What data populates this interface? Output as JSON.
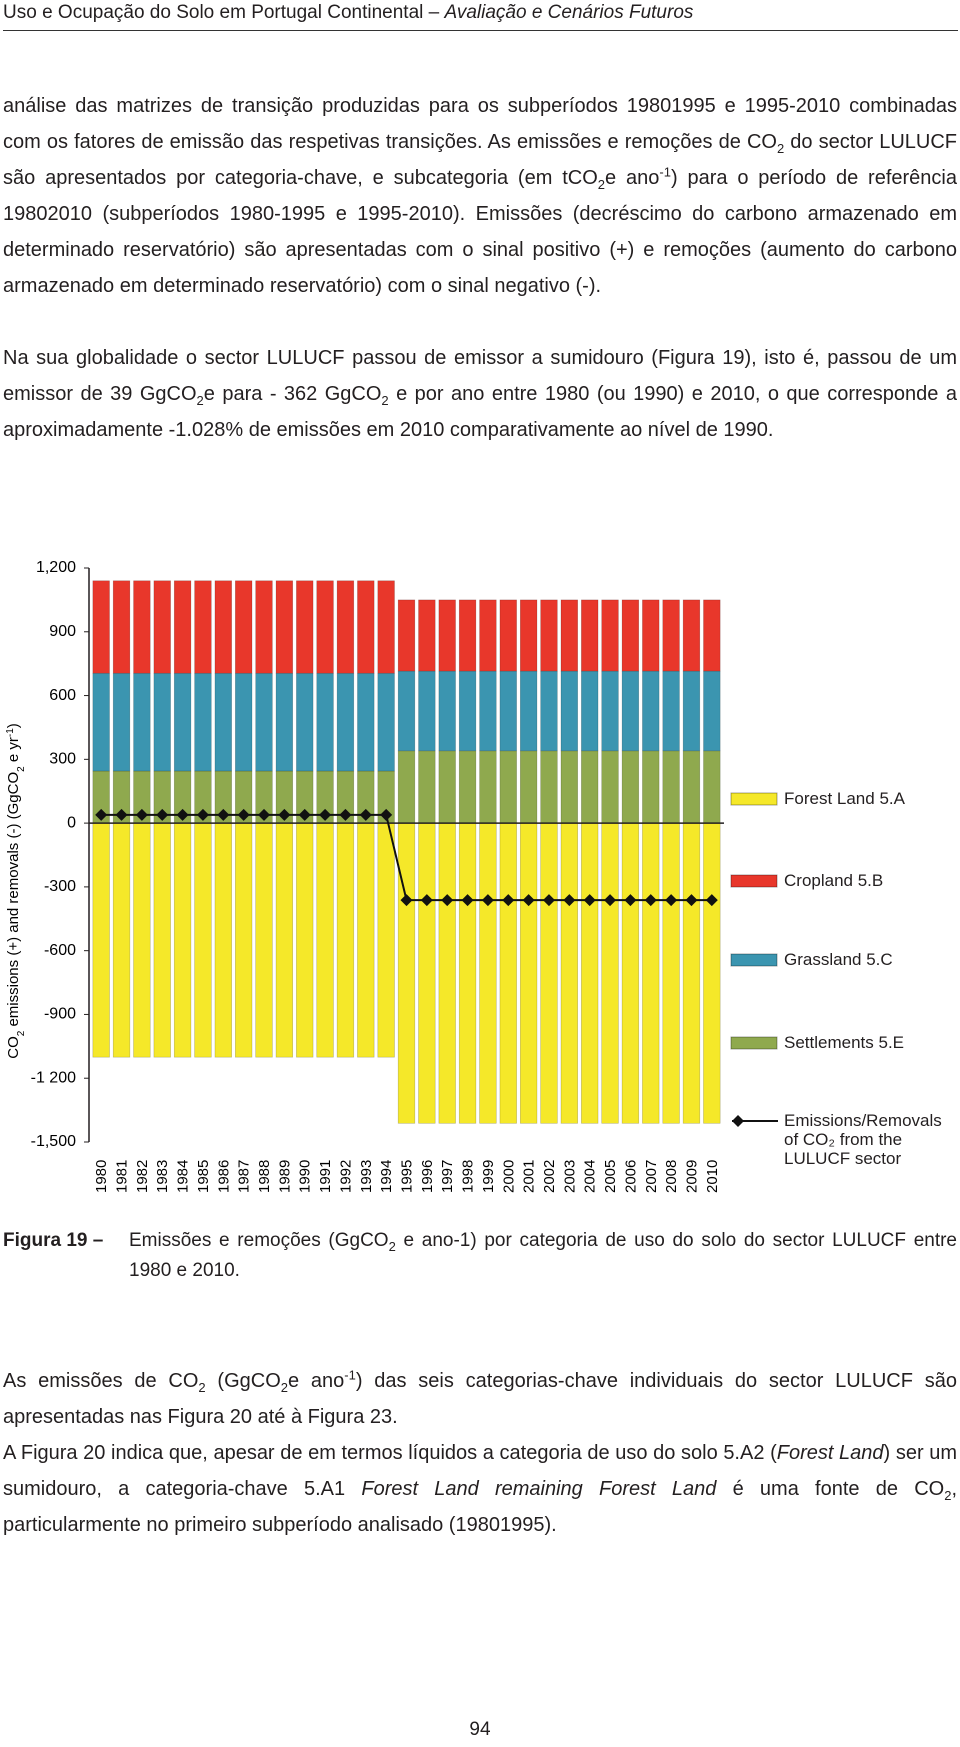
{
  "header": {
    "title": "Uso e Ocupação do Solo em Portugal Continental – ",
    "subtitle": "Avaliação e Cenários Futuros"
  },
  "paragraphs": [
    [
      "análise das matrizes de transição produzidas para os subperíodos 19801995 e 1995-2010 combinadas com os fatores de emissão das respetivas transições. As emissões e remoções de CO",
      "2",
      " do sector LULUCF são apresentados por categoria-chave, e subcategoria (em tCO",
      "2",
      "e ano",
      "-1",
      ") para o período de referência 19802010 (subperíodos 1980-1995 e 1995-2010). Emissões (decréscimo do carbono armazenado em determinado reservatório) são apresentadas com o sinal positivo (+) e remoções (aumento do carbono armazenado em determinado reservatório) com o sinal negativo (-)."
    ],
    [
      "Na sua globalidade o sector LULUCF passou de emissor a sumidouro (Figura 19), isto é, passou de um emissor de 39 GgCO",
      "2",
      "e para - 362 GgCO",
      "2",
      " e por ano entre 1980 (ou 1990) e 2010, o que corresponde a aproximadamente -1.028% de emissões em 2010 comparativamente ao nível de 1990."
    ]
  ],
  "chart_data": {
    "type": "bar",
    "stacked": true,
    "ylabel": [
      "CO",
      "2",
      " emissions (+) and removals (-) (GgCO",
      "2",
      " e yr",
      "-1",
      ")"
    ],
    "categories": [
      "1980",
      "1981",
      "1982",
      "1983",
      "1984",
      "1985",
      "1986",
      "1987",
      "1988",
      "1989",
      "1990",
      "1991",
      "1992",
      "1993",
      "1994",
      "1995",
      "1996",
      "1997",
      "1998",
      "1999",
      "2000",
      "2001",
      "2002",
      "2003",
      "2004",
      "2005",
      "2006",
      "2007",
      "2008",
      "2009",
      "2010"
    ],
    "ylim": [
      -1500,
      1200
    ],
    "yticks": [
      {
        "value": -1500,
        "label": "-1,500"
      },
      {
        "value": -1200,
        "label": "-1 200"
      },
      -900,
      -600,
      -300,
      0,
      300,
      600,
      900,
      {
        "value": 1200,
        "label": "1,200"
      }
    ],
    "series": [
      {
        "name": "Forest Land 5.A",
        "color": "#f5e829",
        "values": [
          -1101,
          -1101,
          -1101,
          -1101,
          -1101,
          -1101,
          -1101,
          -1101,
          -1101,
          -1101,
          -1101,
          -1101,
          -1101,
          -1101,
          -1101,
          -1412,
          -1412,
          -1412,
          -1412,
          -1412,
          -1412,
          -1412,
          -1412,
          -1412,
          -1412,
          -1412,
          -1412,
          -1412,
          -1412,
          -1412,
          -1412
        ]
      },
      {
        "name": "Cropland 5.B",
        "color": "#e8372b",
        "values": [
          435,
          435,
          435,
          435,
          435,
          435,
          435,
          435,
          435,
          435,
          435,
          435,
          435,
          435,
          435,
          335,
          335,
          335,
          335,
          335,
          335,
          335,
          335,
          335,
          335,
          335,
          335,
          335,
          335,
          335,
          335
        ]
      },
      {
        "name": "Grassland 5.C",
        "color": "#3b95b0",
        "values": [
          460,
          460,
          460,
          460,
          460,
          460,
          460,
          460,
          460,
          460,
          460,
          460,
          460,
          460,
          460,
          375,
          375,
          375,
          375,
          375,
          375,
          375,
          375,
          375,
          375,
          375,
          375,
          375,
          375,
          375,
          375
        ]
      },
      {
        "name": "Settlements 5.E",
        "color": "#8fa94e",
        "values": [
          245,
          245,
          245,
          245,
          245,
          245,
          245,
          245,
          245,
          245,
          245,
          245,
          245,
          245,
          245,
          340,
          340,
          340,
          340,
          340,
          340,
          340,
          340,
          340,
          340,
          340,
          340,
          340,
          340,
          340,
          340
        ]
      },
      {
        "name": "Emissions/Removals of CO₂ from the LULUCF sector",
        "type": "line",
        "color": "#111111",
        "values": [
          39,
          39,
          39,
          39,
          39,
          39,
          39,
          39,
          39,
          39,
          39,
          39,
          39,
          39,
          39,
          -362,
          -362,
          -362,
          -362,
          -362,
          -362,
          -362,
          -362,
          -362,
          -362,
          -362,
          -362,
          -362,
          -362,
          -362,
          -362
        ]
      }
    ]
  },
  "caption": {
    "label": "Figura 19 –",
    "text": [
      "Emissões e remoções (GgCO",
      "2",
      " e ano-1) por categoria de uso do solo do sector LULUCF entre 1980 e 2010."
    ]
  },
  "paragraphs2": [
    [
      "As emissões de CO",
      "2",
      " (GgCO",
      "2",
      "e ano",
      "-1",
      ") das seis categorias-chave individuais do sector LULUCF são apresentadas nas Figura 20 até à Figura 23."
    ],
    [
      "A Figura 20 indica que, apesar de em termos líquidos a categoria de uso do solo 5.A2 (",
      "Forest Land",
      ") ser um sumidouro, a categoria-chave 5.A1 ",
      "Forest Land remaining Forest Land",
      " é uma fonte de CO",
      "2",
      ", particularmente no primeiro subperíodo analisado (19801995)."
    ]
  ],
  "page_number": "94"
}
